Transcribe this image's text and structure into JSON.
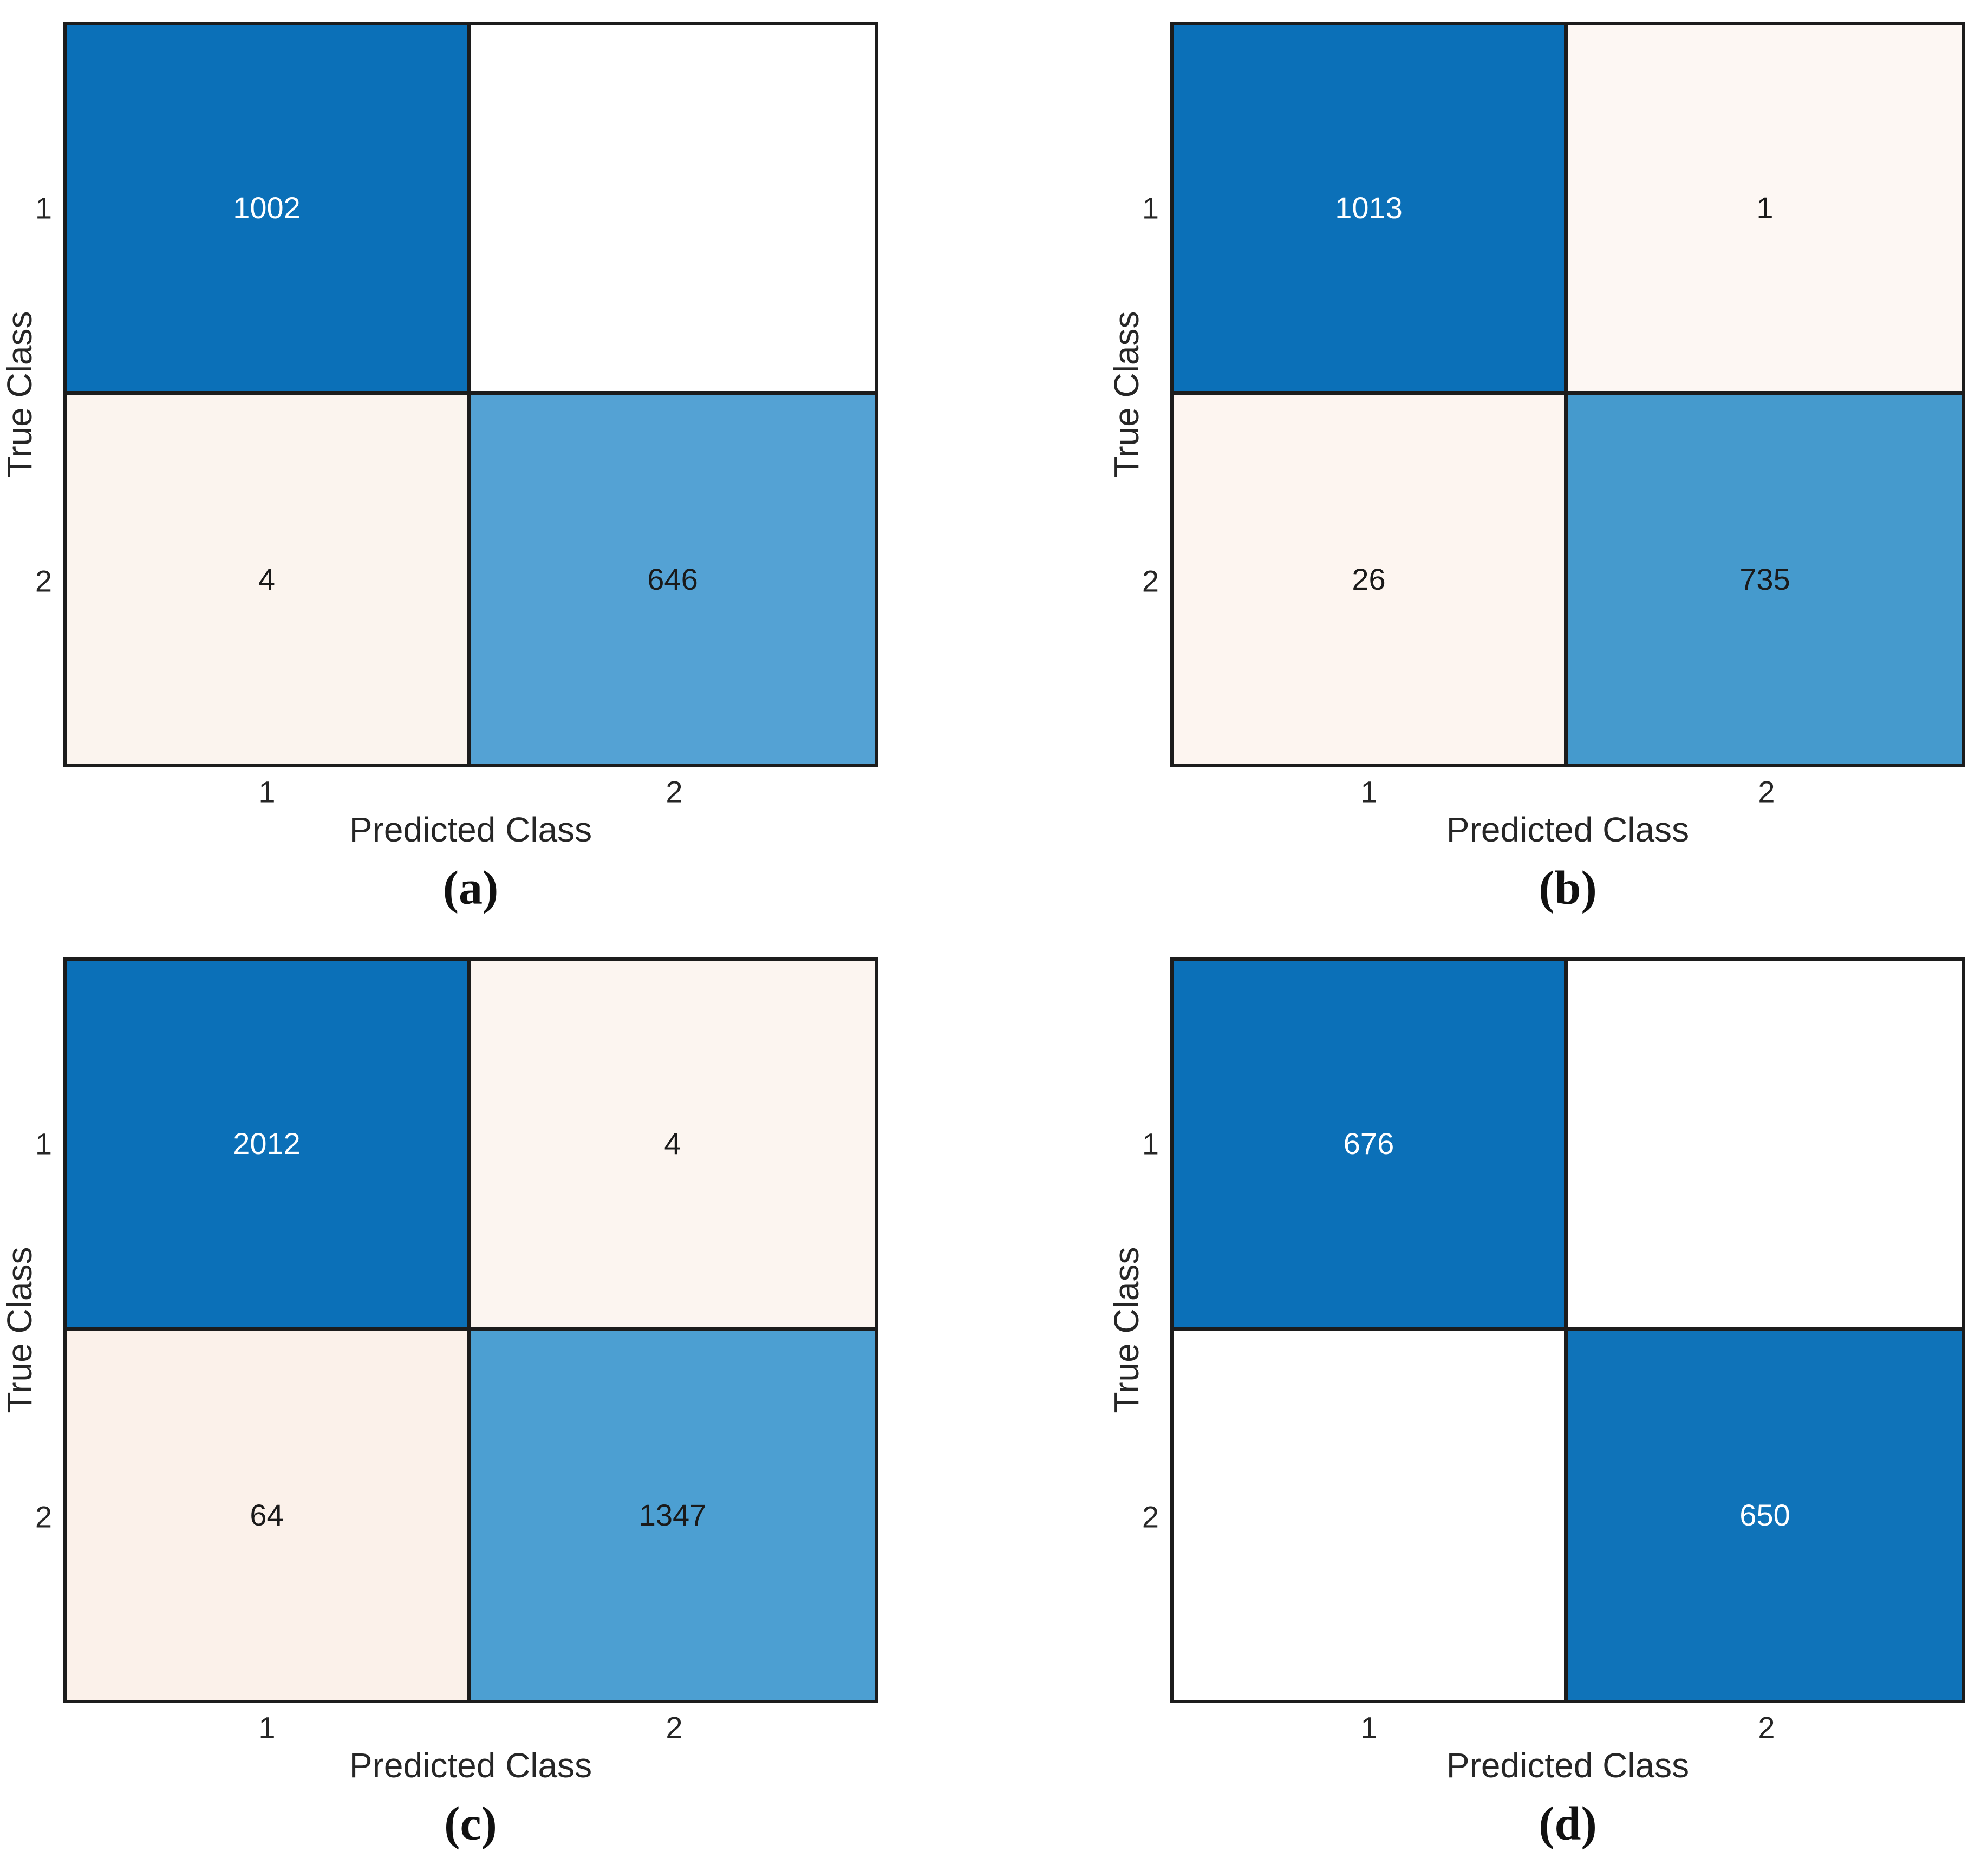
{
  "figure": {
    "xlabel": "Predicted Class",
    "ylabel": "True Class",
    "class_labels": [
      "1",
      "2"
    ],
    "line_color": "#1c1c1c",
    "diagonal_max_color": "#0b70b8",
    "zero_cell_color": "#ffffff"
  },
  "panels": [
    {
      "caption": "(a)",
      "cells": [
        {
          "label": "1002",
          "bg": "#0b70b8",
          "fg": "#ffffff"
        },
        {
          "label": "",
          "bg": "#ffffff",
          "fg": "#1a1a1a"
        },
        {
          "label": "4",
          "bg": "#fbf4ee",
          "fg": "#1a1a1a"
        },
        {
          "label": "646",
          "bg": "#54a2d4",
          "fg": "#1a1a1a"
        }
      ]
    },
    {
      "caption": "(b)",
      "cells": [
        {
          "label": "1013",
          "bg": "#0b70b8",
          "fg": "#ffffff"
        },
        {
          "label": "1",
          "bg": "#fdf7f3",
          "fg": "#1a1a1a"
        },
        {
          "label": "26",
          "bg": "#fdf5f0",
          "fg": "#1a1a1a"
        },
        {
          "label": "735",
          "bg": "#459acd",
          "fg": "#1a1a1a"
        }
      ]
    },
    {
      "caption": "(c)",
      "cells": [
        {
          "label": "2012",
          "bg": "#0b70b8",
          "fg": "#ffffff"
        },
        {
          "label": "4",
          "bg": "#fcf5f0",
          "fg": "#1a1a1a"
        },
        {
          "label": "64",
          "bg": "#fbf1ea",
          "fg": "#1a1a1a"
        },
        {
          "label": "1347",
          "bg": "#4c9fd2",
          "fg": "#1a1a1a"
        }
      ]
    },
    {
      "caption": "(d)",
      "cells": [
        {
          "label": "676",
          "bg": "#0b70b8",
          "fg": "#ffffff"
        },
        {
          "label": "",
          "bg": "#ffffff",
          "fg": "#1a1a1a"
        },
        {
          "label": "",
          "bg": "#ffffff",
          "fg": "#1a1a1a"
        },
        {
          "label": "650",
          "bg": "#0f73b9",
          "fg": "#ffffff"
        }
      ]
    }
  ],
  "chart_data": [
    {
      "type": "heatmap",
      "title": "(a)",
      "xlabel": "Predicted Class",
      "ylabel": "True Class",
      "x_ticks": [
        "1",
        "2"
      ],
      "y_ticks": [
        "1",
        "2"
      ],
      "matrix": [
        [
          1002,
          null
        ],
        [
          4,
          646
        ]
      ],
      "legend_position": "none",
      "grid": false
    },
    {
      "type": "heatmap",
      "title": "(b)",
      "xlabel": "Predicted Class",
      "ylabel": "True Class",
      "x_ticks": [
        "1",
        "2"
      ],
      "y_ticks": [
        "1",
        "2"
      ],
      "matrix": [
        [
          1013,
          1
        ],
        [
          26,
          735
        ]
      ],
      "legend_position": "none",
      "grid": false
    },
    {
      "type": "heatmap",
      "title": "(c)",
      "xlabel": "Predicted Class",
      "ylabel": "True Class",
      "x_ticks": [
        "1",
        "2"
      ],
      "y_ticks": [
        "1",
        "2"
      ],
      "matrix": [
        [
          2012,
          4
        ],
        [
          64,
          1347
        ]
      ],
      "legend_position": "none",
      "grid": false
    },
    {
      "type": "heatmap",
      "title": "(d)",
      "xlabel": "Predicted Class",
      "ylabel": "True Class",
      "x_ticks": [
        "1",
        "2"
      ],
      "y_ticks": [
        "1",
        "2"
      ],
      "matrix": [
        [
          676,
          null
        ],
        [
          null,
          650
        ]
      ],
      "legend_position": "none",
      "grid": false
    }
  ]
}
